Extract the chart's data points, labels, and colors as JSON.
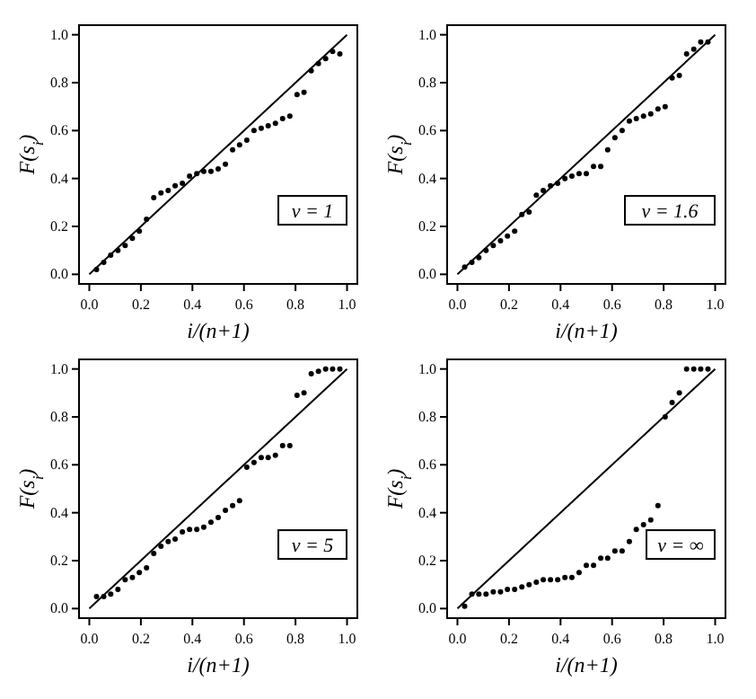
{
  "chart_data": [
    {
      "type": "scatter",
      "xlabel": "i/(n+1)",
      "ylabel": "F(s$_{i}$)",
      "annotations": [
        "ν = 1"
      ],
      "xlim": [
        -0.04,
        1.04
      ],
      "ylim": [
        -0.04,
        1.04
      ],
      "xticks": [
        {
          "value": 0,
          "label": "0.0"
        },
        {
          "value": 0.2,
          "label": "0.2"
        },
        {
          "value": 0.4,
          "label": "0.4"
        },
        {
          "value": 0.6,
          "label": "0.6"
        },
        {
          "value": 0.8,
          "label": "0.8"
        },
        {
          "value": 1,
          "label": "1.0"
        }
      ],
      "yticks": [
        {
          "value": 0,
          "label": "0.0"
        },
        {
          "value": 0.2,
          "label": "0.2"
        },
        {
          "value": 0.4,
          "label": "0.4"
        },
        {
          "value": 0.6,
          "label": "0.6"
        },
        {
          "value": 0.8,
          "label": "0.8"
        },
        {
          "value": 1,
          "label": "1.0"
        }
      ],
      "series": [
        {
          "marker": "circle",
          "color": "#000000",
          "x": [
            0.028,
            0.056,
            0.083,
            0.111,
            0.139,
            0.167,
            0.194,
            0.222,
            0.25,
            0.278,
            0.306,
            0.333,
            0.361,
            0.389,
            0.417,
            0.444,
            0.472,
            0.5,
            0.528,
            0.556,
            0.583,
            0.611,
            0.639,
            0.667,
            0.694,
            0.722,
            0.75,
            0.778,
            0.806,
            0.833,
            0.861,
            0.889,
            0.917,
            0.944,
            0.972
          ],
          "values": [
            0.02,
            0.05,
            0.08,
            0.1,
            0.12,
            0.15,
            0.18,
            0.23,
            0.32,
            0.34,
            0.35,
            0.37,
            0.38,
            0.41,
            0.42,
            0.43,
            0.43,
            0.44,
            0.46,
            0.52,
            0.54,
            0.56,
            0.6,
            0.61,
            0.62,
            0.63,
            0.65,
            0.66,
            0.75,
            0.76,
            0.85,
            0.88,
            0.9,
            0.93,
            0.92
          ]
        },
        {
          "type": "line",
          "color": "#000000",
          "x": [
            0,
            1
          ],
          "values": [
            0,
            1
          ]
        }
      ]
    },
    {
      "type": "scatter",
      "xlabel": "i/(n+1)",
      "ylabel": "F(s$_{i}$)",
      "annotations": [
        "ν = 1.6"
      ],
      "xlim": [
        -0.04,
        1.04
      ],
      "ylim": [
        -0.04,
        1.04
      ],
      "xticks": [
        {
          "value": 0,
          "label": "0.0"
        },
        {
          "value": 0.2,
          "label": "0.2"
        },
        {
          "value": 0.4,
          "label": "0.4"
        },
        {
          "value": 0.6,
          "label": "0.6"
        },
        {
          "value": 0.8,
          "label": "0.8"
        },
        {
          "value": 1,
          "label": "1.0"
        }
      ],
      "yticks": [
        {
          "value": 0,
          "label": "0.0"
        },
        {
          "value": 0.2,
          "label": "0.2"
        },
        {
          "value": 0.4,
          "label": "0.4"
        },
        {
          "value": 0.6,
          "label": "0.6"
        },
        {
          "value": 0.8,
          "label": "0.8"
        },
        {
          "value": 1,
          "label": "1.0"
        }
      ],
      "series": [
        {
          "marker": "circle",
          "color": "#000000",
          "x": [
            0.028,
            0.056,
            0.083,
            0.111,
            0.139,
            0.167,
            0.194,
            0.222,
            0.25,
            0.278,
            0.306,
            0.333,
            0.361,
            0.389,
            0.417,
            0.444,
            0.472,
            0.5,
            0.528,
            0.556,
            0.583,
            0.611,
            0.639,
            0.667,
            0.694,
            0.722,
            0.75,
            0.778,
            0.806,
            0.833,
            0.861,
            0.889,
            0.917,
            0.944,
            0.972
          ],
          "values": [
            0.03,
            0.05,
            0.07,
            0.1,
            0.12,
            0.14,
            0.16,
            0.18,
            0.25,
            0.26,
            0.33,
            0.35,
            0.37,
            0.38,
            0.4,
            0.41,
            0.42,
            0.42,
            0.45,
            0.45,
            0.52,
            0.57,
            0.6,
            0.64,
            0.65,
            0.66,
            0.67,
            0.69,
            0.7,
            0.82,
            0.83,
            0.92,
            0.94,
            0.97,
            0.97
          ]
        },
        {
          "type": "line",
          "color": "#000000",
          "x": [
            0,
            1
          ],
          "values": [
            0,
            1
          ]
        }
      ]
    },
    {
      "type": "scatter",
      "xlabel": "i/(n+1)",
      "ylabel": "F(s$_{i}$)",
      "annotations": [
        "ν = 5"
      ],
      "xlim": [
        -0.04,
        1.04
      ],
      "ylim": [
        -0.04,
        1.04
      ],
      "xticks": [
        {
          "value": 0,
          "label": "0.0"
        },
        {
          "value": 0.2,
          "label": "0.2"
        },
        {
          "value": 0.4,
          "label": "0.4"
        },
        {
          "value": 0.6,
          "label": "0.6"
        },
        {
          "value": 0.8,
          "label": "0.8"
        },
        {
          "value": 1,
          "label": "1.0"
        }
      ],
      "yticks": [
        {
          "value": 0,
          "label": "0.0"
        },
        {
          "value": 0.2,
          "label": "0.2"
        },
        {
          "value": 0.4,
          "label": "0.4"
        },
        {
          "value": 0.6,
          "label": "0.6"
        },
        {
          "value": 0.8,
          "label": "0.8"
        },
        {
          "value": 1,
          "label": "1.0"
        }
      ],
      "series": [
        {
          "marker": "circle",
          "color": "#000000",
          "x": [
            0.028,
            0.056,
            0.083,
            0.111,
            0.139,
            0.167,
            0.194,
            0.222,
            0.25,
            0.278,
            0.306,
            0.333,
            0.361,
            0.389,
            0.417,
            0.444,
            0.472,
            0.5,
            0.528,
            0.556,
            0.583,
            0.611,
            0.639,
            0.667,
            0.694,
            0.722,
            0.75,
            0.778,
            0.806,
            0.833,
            0.861,
            0.889,
            0.917,
            0.944,
            0.972
          ],
          "values": [
            0.05,
            0.05,
            0.06,
            0.08,
            0.12,
            0.13,
            0.15,
            0.17,
            0.23,
            0.26,
            0.28,
            0.29,
            0.32,
            0.33,
            0.33,
            0.34,
            0.36,
            0.38,
            0.41,
            0.43,
            0.45,
            0.59,
            0.61,
            0.63,
            0.63,
            0.64,
            0.68,
            0.68,
            0.89,
            0.9,
            0.98,
            0.99,
            1.0,
            1.0,
            1.0
          ]
        },
        {
          "type": "line",
          "color": "#000000",
          "x": [
            0,
            1
          ],
          "values": [
            0,
            1
          ]
        }
      ]
    },
    {
      "type": "scatter",
      "xlabel": "i/(n+1)",
      "ylabel": "F(s$_{i}$)",
      "annotations": [
        "ν = ∞"
      ],
      "xlim": [
        -0.04,
        1.04
      ],
      "ylim": [
        -0.04,
        1.04
      ],
      "xticks": [
        {
          "value": 0,
          "label": "0.0"
        },
        {
          "value": 0.2,
          "label": "0.2"
        },
        {
          "value": 0.4,
          "label": "0.4"
        },
        {
          "value": 0.6,
          "label": "0.6"
        },
        {
          "value": 0.8,
          "label": "0.8"
        },
        {
          "value": 1,
          "label": "1.0"
        }
      ],
      "yticks": [
        {
          "value": 0,
          "label": "0.0"
        },
        {
          "value": 0.2,
          "label": "0.2"
        },
        {
          "value": 0.4,
          "label": "0.4"
        },
        {
          "value": 0.6,
          "label": "0.6"
        },
        {
          "value": 0.8,
          "label": "0.8"
        },
        {
          "value": 1,
          "label": "1.0"
        }
      ],
      "series": [
        {
          "marker": "circle",
          "color": "#000000",
          "x": [
            0.028,
            0.056,
            0.083,
            0.111,
            0.139,
            0.167,
            0.194,
            0.222,
            0.25,
            0.278,
            0.306,
            0.333,
            0.361,
            0.389,
            0.417,
            0.444,
            0.472,
            0.5,
            0.528,
            0.556,
            0.583,
            0.611,
            0.639,
            0.667,
            0.694,
            0.722,
            0.75,
            0.778,
            0.806,
            0.833,
            0.861,
            0.889,
            0.917,
            0.944,
            0.972
          ],
          "values": [
            0.01,
            0.06,
            0.06,
            0.06,
            0.07,
            0.07,
            0.08,
            0.08,
            0.09,
            0.1,
            0.11,
            0.12,
            0.12,
            0.12,
            0.13,
            0.13,
            0.15,
            0.18,
            0.18,
            0.21,
            0.21,
            0.24,
            0.24,
            0.28,
            0.33,
            0.35,
            0.37,
            0.43,
            0.8,
            0.86,
            0.9,
            1.0,
            1.0,
            1.0,
            1.0
          ]
        },
        {
          "type": "line",
          "color": "#000000",
          "x": [
            0,
            1
          ],
          "values": [
            0,
            1
          ]
        }
      ]
    }
  ]
}
